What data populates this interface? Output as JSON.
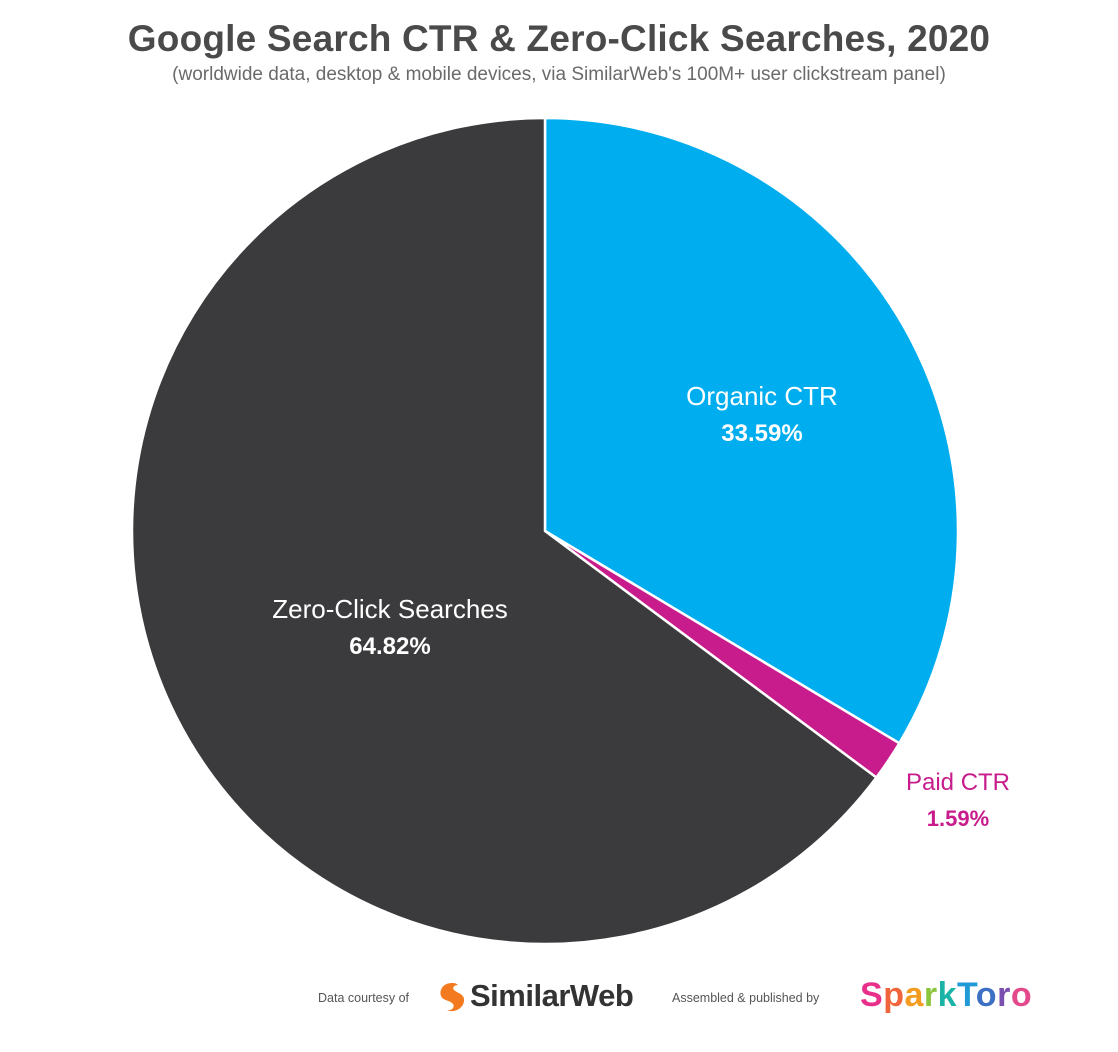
{
  "chart_data": {
    "type": "pie",
    "title": "Google Search CTR & Zero-Click Searches, 2020",
    "subtitle": "(worldwide data, desktop & mobile devices, via SimilarWeb's 100M+ user clickstream panel)",
    "slices": [
      {
        "label": "Organic CTR",
        "value_label": "33.59%",
        "value": 33.59,
        "color": "#00adee",
        "text_color": "#ffffff"
      },
      {
        "label": "Paid CTR",
        "value_label": "1.59%",
        "value": 1.59,
        "color": "#c81c8c",
        "text_color": "#c81c8c"
      },
      {
        "label": "Zero-Click Searches",
        "value_label": "64.82%",
        "value": 64.82,
        "color": "#3b3b3d",
        "text_color": "#ffffff"
      }
    ],
    "start": "12 o'clock",
    "direction": "clockwise"
  },
  "footer": {
    "data_credit": "Data courtesy of",
    "data_source": "SimilarWeb",
    "publish_credit": "Assembled & published by",
    "publisher_letters": [
      "S",
      "p",
      "a",
      "r",
      "k",
      "T",
      "o",
      "r",
      "o"
    ],
    "publisher_colors": [
      "#e8308a",
      "#f2643c",
      "#f39c1f",
      "#8cc63f",
      "#1bb3a6",
      "#1f9ad6",
      "#3d6fc4",
      "#7b4fb0",
      "#e34a8c"
    ],
    "similarweb_mark_color": "#f47a20"
  }
}
